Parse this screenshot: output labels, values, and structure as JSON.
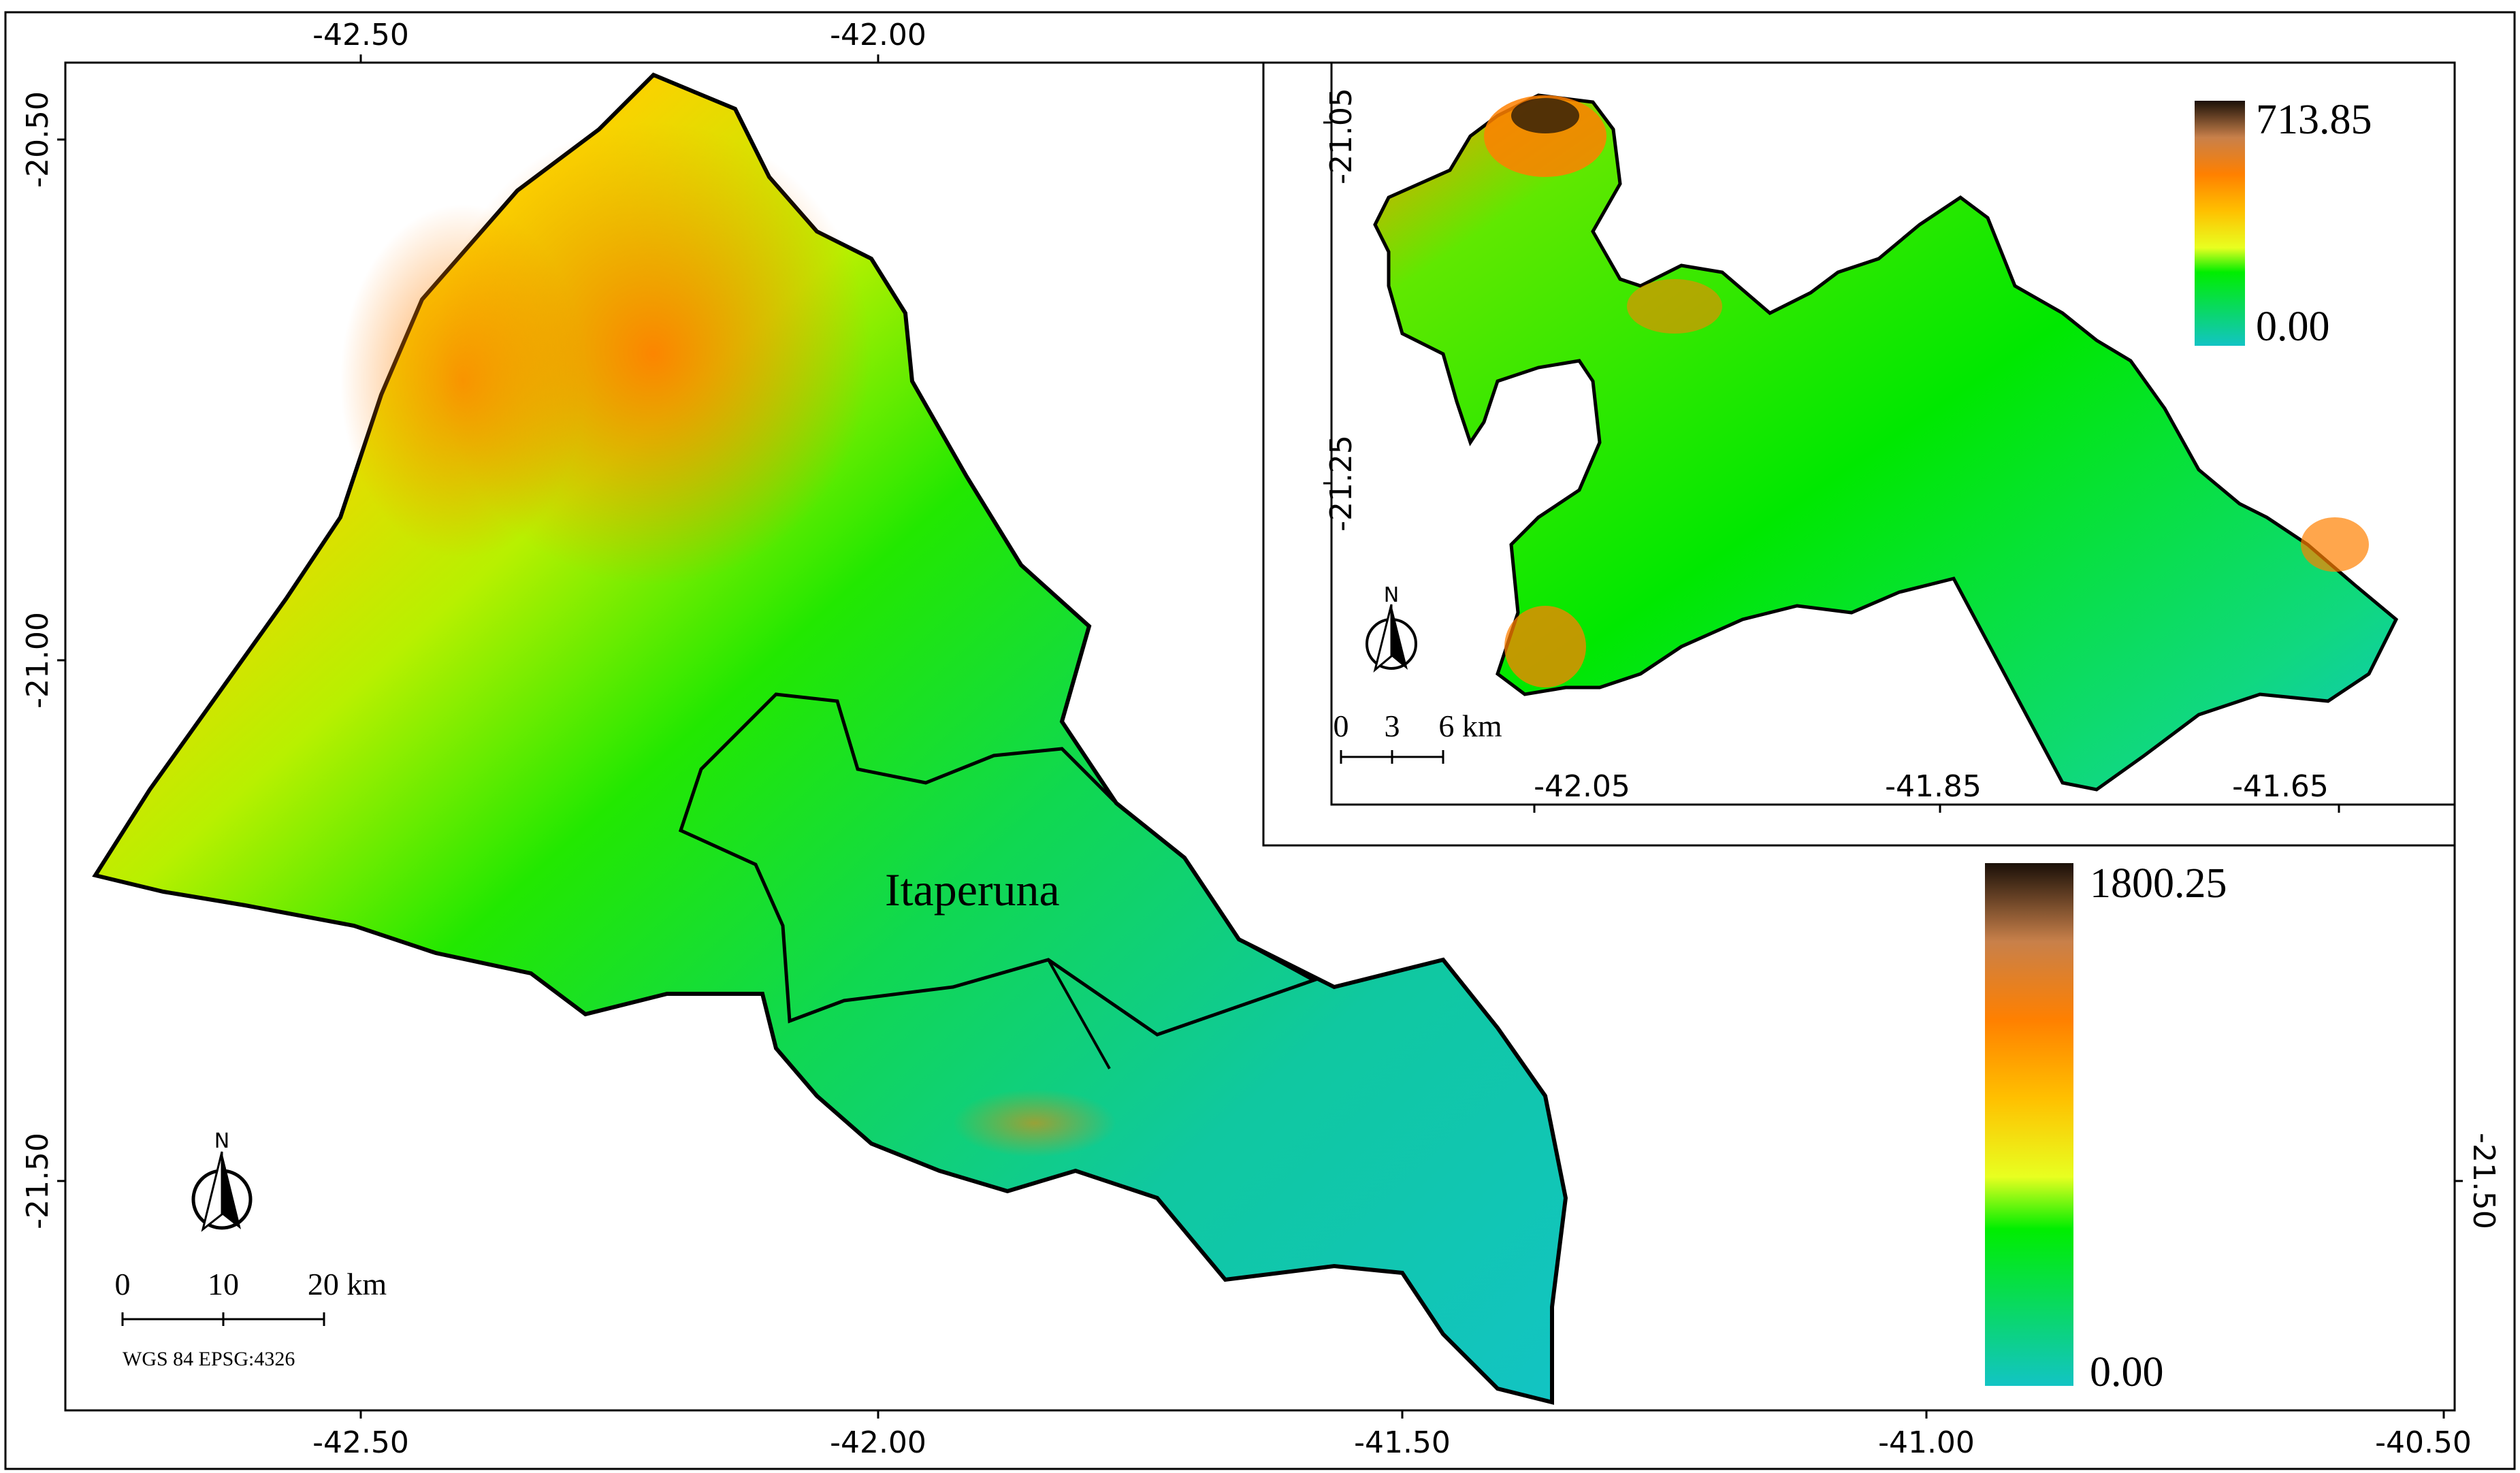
{
  "main_map": {
    "top_ticks": [
      "-42.50",
      "-42.00"
    ],
    "bottom_ticks": [
      "-42.50",
      "-42.00",
      "-41.50",
      "-41.00",
      "-40.50"
    ],
    "left_ticks": [
      "-20.50",
      "-21.00",
      "-21.50"
    ],
    "right_ticks": [
      "-21.50"
    ],
    "place_label": "Itaperuna",
    "legend": {
      "max": "1800.25",
      "min": "0.00"
    },
    "scale_bar": {
      "labels": [
        "0",
        "10",
        "20 km"
      ]
    },
    "crs": "WGS 84 EPSG:4326",
    "north": "N"
  },
  "inset_map": {
    "bottom_ticks": [
      "-42.05",
      "-41.85",
      "-41.65"
    ],
    "left_ticks": [
      "-21.05",
      "-21.25"
    ],
    "legend": {
      "max": "713.85",
      "min": "0.00"
    },
    "scale_bar": {
      "labels": [
        "0",
        "3",
        "6 km"
      ]
    },
    "north": "N"
  },
  "colors": {
    "low": "#12c4c4",
    "mid": "#00ee00",
    "yellow": "#ffff00",
    "orange": "#ff8000",
    "brown": "#c8804a",
    "high": "#1a1008"
  }
}
